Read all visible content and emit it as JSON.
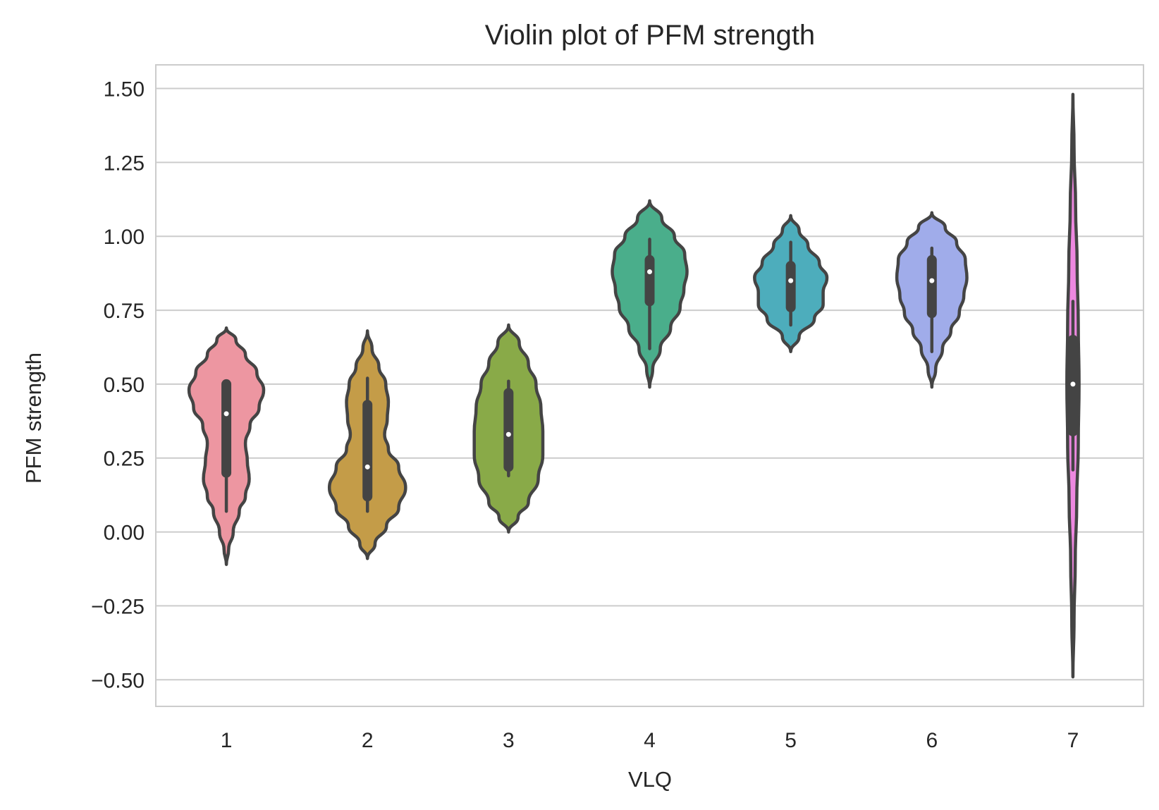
{
  "chart_data": {
    "type": "violin",
    "title": "Violin plot of PFM strength",
    "xlabel": "VLQ",
    "ylabel": "PFM strength",
    "categories": [
      "1",
      "2",
      "3",
      "4",
      "5",
      "6",
      "7"
    ],
    "yticks": [
      "−0.50",
      "−0.25",
      "0.00",
      "0.25",
      "0.50",
      "0.75",
      "1.00",
      "1.25",
      "1.50"
    ],
    "ytick_values": [
      -0.5,
      -0.25,
      0,
      0.25,
      0.5,
      0.75,
      1.0,
      1.25,
      1.5
    ],
    "ylim": [
      -0.59,
      1.58
    ],
    "grid": true,
    "legend": "none",
    "colors": [
      "#ed96a1",
      "#c49c48",
      "#89aa48",
      "#4aae8b",
      "#4dadbc",
      "#a0acea",
      "#ed88e0"
    ],
    "violins": [
      {
        "name": "1",
        "min": -0.11,
        "max": 0.69,
        "q1": 0.2,
        "median": 0.4,
        "q3": 0.5,
        "whisker_low": 0.07,
        "whisker_high": 0.5,
        "density": [
          [
            -0.11,
            0.0
          ],
          [
            -0.06,
            0.06
          ],
          [
            0.0,
            0.18
          ],
          [
            0.07,
            0.34
          ],
          [
            0.12,
            0.5
          ],
          [
            0.18,
            0.6
          ],
          [
            0.24,
            0.55
          ],
          [
            0.3,
            0.5
          ],
          [
            0.36,
            0.62
          ],
          [
            0.42,
            0.86
          ],
          [
            0.48,
            0.98
          ],
          [
            0.54,
            0.8
          ],
          [
            0.6,
            0.5
          ],
          [
            0.65,
            0.25
          ],
          [
            0.69,
            0.0
          ]
        ]
      },
      {
        "name": "2",
        "min": -0.09,
        "max": 0.68,
        "q1": 0.12,
        "median": 0.22,
        "q3": 0.43,
        "whisker_low": 0.07,
        "whisker_high": 0.52,
        "density": [
          [
            -0.09,
            0.0
          ],
          [
            -0.04,
            0.2
          ],
          [
            0.02,
            0.5
          ],
          [
            0.08,
            0.82
          ],
          [
            0.15,
            1.0
          ],
          [
            0.22,
            0.82
          ],
          [
            0.28,
            0.55
          ],
          [
            0.33,
            0.45
          ],
          [
            0.38,
            0.52
          ],
          [
            0.44,
            0.55
          ],
          [
            0.5,
            0.48
          ],
          [
            0.56,
            0.3
          ],
          [
            0.62,
            0.12
          ],
          [
            0.68,
            0.0
          ]
        ]
      },
      {
        "name": "3",
        "min": 0.0,
        "max": 0.7,
        "q1": 0.22,
        "median": 0.33,
        "q3": 0.47,
        "whisker_low": 0.19,
        "whisker_high": 0.51,
        "density": [
          [
            0.0,
            0.0
          ],
          [
            0.05,
            0.25
          ],
          [
            0.1,
            0.52
          ],
          [
            0.18,
            0.78
          ],
          [
            0.26,
            0.9
          ],
          [
            0.34,
            0.9
          ],
          [
            0.42,
            0.85
          ],
          [
            0.5,
            0.72
          ],
          [
            0.57,
            0.52
          ],
          [
            0.64,
            0.28
          ],
          [
            0.7,
            0.0
          ]
        ]
      },
      {
        "name": "4",
        "min": 0.49,
        "max": 1.12,
        "q1": 0.78,
        "median": 0.88,
        "q3": 0.92,
        "whisker_low": 0.62,
        "whisker_high": 0.99,
        "density": [
          [
            0.49,
            0.0
          ],
          [
            0.55,
            0.08
          ],
          [
            0.62,
            0.28
          ],
          [
            0.69,
            0.55
          ],
          [
            0.76,
            0.8
          ],
          [
            0.82,
            0.9
          ],
          [
            0.88,
            0.98
          ],
          [
            0.94,
            0.92
          ],
          [
            1.0,
            0.65
          ],
          [
            1.06,
            0.32
          ],
          [
            1.12,
            0.0
          ]
        ]
      },
      {
        "name": "5",
        "min": 0.61,
        "max": 1.07,
        "q1": 0.76,
        "median": 0.85,
        "q3": 0.9,
        "whisker_low": 0.7,
        "whisker_high": 0.98,
        "density": [
          [
            0.61,
            0.0
          ],
          [
            0.66,
            0.22
          ],
          [
            0.72,
            0.62
          ],
          [
            0.77,
            0.85
          ],
          [
            0.81,
            0.85
          ],
          [
            0.86,
            0.95
          ],
          [
            0.91,
            0.75
          ],
          [
            0.97,
            0.45
          ],
          [
            1.02,
            0.22
          ],
          [
            1.07,
            0.0
          ]
        ]
      },
      {
        "name": "6",
        "min": 0.49,
        "max": 1.08,
        "q1": 0.74,
        "median": 0.85,
        "q3": 0.92,
        "whisker_low": 0.61,
        "whisker_high": 0.96,
        "density": [
          [
            0.49,
            0.0
          ],
          [
            0.55,
            0.1
          ],
          [
            0.62,
            0.28
          ],
          [
            0.68,
            0.5
          ],
          [
            0.74,
            0.72
          ],
          [
            0.8,
            0.84
          ],
          [
            0.86,
            0.92
          ],
          [
            0.92,
            0.88
          ],
          [
            0.98,
            0.65
          ],
          [
            1.03,
            0.35
          ],
          [
            1.08,
            0.0
          ]
        ]
      },
      {
        "name": "7",
        "min": -0.49,
        "max": 1.48,
        "q1": 0.34,
        "median": 0.5,
        "q3": 0.65,
        "whisker_low": 0.21,
        "whisker_high": 0.78,
        "density": [
          [
            -0.49,
            0.0
          ],
          [
            -0.3,
            0.03
          ],
          [
            -0.1,
            0.06
          ],
          [
            0.1,
            0.1
          ],
          [
            0.3,
            0.14
          ],
          [
            0.5,
            0.16
          ],
          [
            0.7,
            0.14
          ],
          [
            0.9,
            0.11
          ],
          [
            1.1,
            0.07
          ],
          [
            1.3,
            0.03
          ],
          [
            1.48,
            0.0
          ]
        ]
      }
    ]
  }
}
